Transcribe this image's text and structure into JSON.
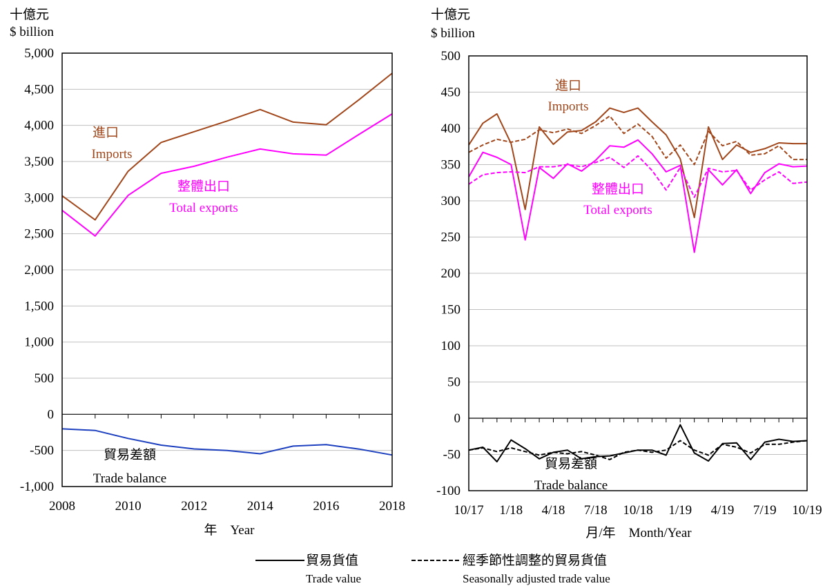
{
  "colors": {
    "imports": "#A0461A",
    "exports": "#FF00FF",
    "balance_annual": "#1B3FBF",
    "balance_monthly": "#000000",
    "grid": "#BFBFBF",
    "axis": "#000000"
  },
  "legend": {
    "solid_zh": "貿易貨值",
    "solid_en": "Trade value",
    "dashed_zh": "經季節性調整的貿易貨值",
    "dashed_en": "Seasonally adjusted trade value"
  },
  "chart_data": [
    {
      "type": "line",
      "unit_zh": "十億元",
      "unit_en": "$ billion",
      "xlabel": "年　Year",
      "x": [
        2008,
        2009,
        2010,
        2011,
        2012,
        2013,
        2014,
        2015,
        2016,
        2017,
        2018
      ],
      "x_tick_labels": [
        "2008",
        "2010",
        "2012",
        "2014",
        "2016",
        "2018"
      ],
      "y_tick_labels": [
        "5,000",
        "4,500",
        "4,000",
        "3,500",
        "3,000",
        "2,500",
        "2,000",
        "1,500",
        "1,000",
        "500",
        "0",
        "-500",
        "-1,000"
      ],
      "ylim": [
        -1000,
        5000
      ],
      "grid": true,
      "annotations": {
        "imports_zh": "進口",
        "imports_en": "Imports",
        "exports_zh": "整體出口",
        "exports_en": "Total exports",
        "balance_zh": "貿易差額",
        "balance_en": "Trade balance"
      },
      "series": [
        {
          "key": "imports",
          "values": [
            3025,
            2692,
            3365,
            3764,
            3913,
            4061,
            4219,
            4046,
            4008,
            4357,
            4722
          ]
        },
        {
          "key": "exports",
          "values": [
            2824,
            2469,
            3031,
            3337,
            3434,
            3560,
            3673,
            3606,
            3588,
            3876,
            4159
          ]
        },
        {
          "key": "balance",
          "values": [
            -201,
            -223,
            -334,
            -427,
            -479,
            -501,
            -546,
            -440,
            -420,
            -481,
            -563
          ]
        }
      ]
    },
    {
      "type": "line",
      "unit_zh": "十億元",
      "unit_en": "$ billion",
      "xlabel": "月/年　Month/Year",
      "x_tick_labels": [
        "10/17",
        "1/18",
        "4/18",
        "7/18",
        "10/18",
        "1/19",
        "4/19",
        "7/19",
        "10/19"
      ],
      "y_tick_labels": [
        "500",
        "450",
        "400",
        "350",
        "300",
        "250",
        "200",
        "150",
        "100",
        "50",
        "0",
        "-50",
        "-100"
      ],
      "ylim": [
        -100,
        500
      ],
      "grid": true,
      "annotations": {
        "imports_zh": "進口",
        "imports_en": "Imports",
        "exports_zh": "整體出口",
        "exports_en": "Total exports",
        "balance_zh": "貿易差額",
        "balance_en": "Trade balance"
      },
      "series": [
        {
          "key": "imports",
          "values": [
            377,
            407,
            420,
            379,
            288,
            402,
            378,
            395,
            397,
            409,
            428,
            422,
            428,
            409,
            391,
            358,
            277,
            402,
            357,
            377,
            367,
            372,
            380,
            379,
            379
          ]
        },
        {
          "key": "imports_sa",
          "values": [
            367,
            377,
            385,
            381,
            385,
            398,
            394,
            399,
            393,
            404,
            417,
            393,
            406,
            389,
            359,
            377,
            350,
            396,
            376,
            382,
            363,
            365,
            376,
            357,
            357
          ]
        },
        {
          "key": "exports",
          "values": [
            333,
            367,
            360,
            350,
            246,
            346,
            331,
            351,
            341,
            356,
            376,
            374,
            384,
            365,
            340,
            349,
            229,
            343,
            322,
            343,
            310,
            339,
            351,
            347,
            348
          ]
        },
        {
          "key": "exports_sa",
          "values": [
            323,
            336,
            339,
            340,
            339,
            347,
            347,
            350,
            347,
            353,
            360,
            346,
            362,
            342,
            315,
            346,
            305,
            345,
            340,
            342,
            315,
            329,
            340,
            324,
            326
          ]
        },
        {
          "key": "balance",
          "values": [
            -44,
            -40,
            -60,
            -30,
            -42,
            -56,
            -47,
            -44,
            -56,
            -53,
            -52,
            -48,
            -44,
            -44,
            -51,
            -9,
            -48,
            -59,
            -35,
            -34,
            -57,
            -33,
            -29,
            -32,
            -31
          ]
        },
        {
          "key": "balance_sa",
          "values": [
            -44,
            -41,
            -46,
            -41,
            -46,
            -51,
            -47,
            -49,
            -46,
            -51,
            -57,
            -47,
            -44,
            -47,
            -44,
            -31,
            -44,
            -51,
            -36,
            -40,
            -48,
            -36,
            -36,
            -33,
            -31
          ]
        }
      ]
    }
  ]
}
